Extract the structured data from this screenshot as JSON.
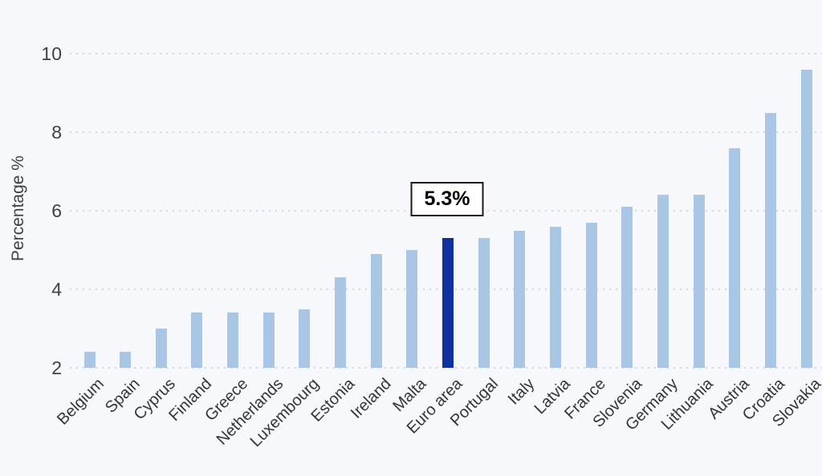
{
  "chart_data": {
    "type": "bar",
    "title": "",
    "xlabel": "",
    "ylabel": "Percentage %",
    "yticks": [
      2,
      4,
      6,
      8,
      10
    ],
    "ylim": [
      2,
      11.3
    ],
    "grid": "dotted-horizontal",
    "legend": "none",
    "categories": [
      "Belgium",
      "Spain",
      "Cyprus",
      "Finland",
      "Greece",
      "Netherlands",
      "Luxembourg",
      "Estonia",
      "Ireland",
      "Malta",
      "Euro area",
      "Portugal",
      "Italy",
      "Latvia",
      "France",
      "Slovenia",
      "Germany",
      "Lithuania",
      "Austria",
      "Croatia",
      "Slovakia"
    ],
    "values": [
      2.4,
      2.4,
      3.0,
      3.4,
      3.4,
      3.4,
      3.5,
      4.3,
      4.9,
      5.0,
      5.3,
      5.3,
      5.5,
      5.6,
      5.7,
      6.1,
      6.4,
      6.4,
      7.6,
      8.5,
      9.6
    ],
    "highlight_category": "Euro area",
    "highlight_annotation": "5.3%",
    "colors": {
      "bar": "#a9c7e5",
      "highlight_bar": "#0f319d",
      "background": "#f6f8fb",
      "gridline": "#d4d7da",
      "axis_text": "#3f4245"
    }
  }
}
